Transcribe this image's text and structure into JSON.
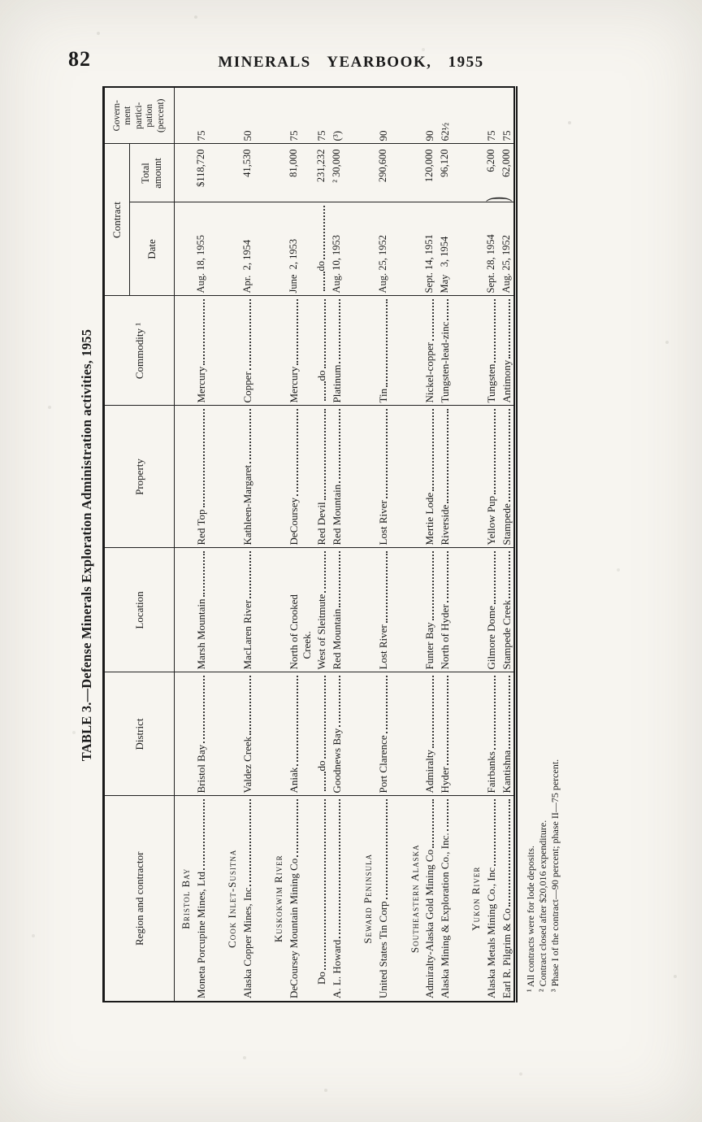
{
  "page": {
    "number": "82",
    "running_head": "MINERALS YEARBOOK, 1955"
  },
  "table": {
    "title": "TABLE 3.—Defense Minerals Exploration Administration activities, 1955",
    "headers": {
      "region": "Region and contractor",
      "district": "District",
      "location": "Location",
      "property": "Property",
      "commodity": "Commodity ¹",
      "contract": "Contract",
      "date": "Date",
      "amount": "Total\namount",
      "participation": "Govern-\nment\npartici-\npation\n(percent)"
    },
    "misc": {
      "date_pair_brace": ")"
    },
    "rows": [
      {
        "type": "heading",
        "label": "Bristol Bay"
      },
      {
        "type": "data",
        "contractor": "Moneta Porcupine Mines, Ltd",
        "district": "Bristol Bay",
        "location": [
          "Marsh Mountain"
        ],
        "property": "Red Top",
        "commodity": "Mercury",
        "date": "Aug. 18, 1955",
        "amount": "$118,720",
        "participation": "75",
        "gap_after": true
      },
      {
        "type": "heading",
        "label": "Cook Inlet-Susitna"
      },
      {
        "type": "data",
        "contractor": "Alaska Copper Mines, Inc",
        "district": "Valdez Creek",
        "location": [
          "MacLaren River"
        ],
        "property": "Kathleen-Margaret",
        "commodity": "Copper",
        "date": "Apr.  2, 1954",
        "amount": "41,530",
        "participation": "50",
        "gap_after": true
      },
      {
        "type": "heading",
        "label": "Kuskokwim River"
      },
      {
        "type": "data",
        "contractor": "DeCoursey Mountain Mining Co",
        "district": "Aniak",
        "location": [
          "North of Crooked",
          "Creek."
        ],
        "property": "DeCoursey",
        "commodity": "Mercury",
        "date": "June  2, 1953",
        "amount": "81,000",
        "participation": "75"
      },
      {
        "type": "data",
        "contractor": "Do",
        "district": "do",
        "location": [
          "West of Sleitmute"
        ],
        "property": "Red Devil",
        "commodity": "do",
        "date": "do",
        "amount": "231,232",
        "participation": "75"
      },
      {
        "type": "data",
        "contractor": "A. L. Howard",
        "district": "Goodnews Bay",
        "location": [
          "Red Mountain"
        ],
        "property": "Red Mountain",
        "commodity": "Platinum",
        "date": "Aug. 10, 1953",
        "amount": "² 30,000",
        "participation": "(³)",
        "gap_after": true
      },
      {
        "type": "heading",
        "label": "Seward Peninsula"
      },
      {
        "type": "data",
        "contractor": "United States Tin Corp",
        "district": "Port Clarence",
        "location": [
          "Lost River"
        ],
        "property": "Lost River",
        "commodity": "Tin",
        "date": "Aug. 25, 1952",
        "amount": "290,600",
        "participation": "90",
        "gap_after": true
      },
      {
        "type": "heading",
        "label": "Southeastern Alaska"
      },
      {
        "type": "data",
        "contractor": "Admiralty-Alaska Gold Mining Co",
        "district": "Admiralty",
        "location": [
          "Funter Bay"
        ],
        "property": "Mertie Lode",
        "commodity": "Nickel-copper",
        "date": "Sept. 14, 1951",
        "amount": "120,000",
        "participation": "90"
      },
      {
        "type": "data",
        "contractor": "Alaska Mining & Exploration Co., Inc.",
        "district": "Hyder",
        "location": [
          "North of Hyder"
        ],
        "property": "Riverside",
        "commodity": "Tungsten-lead-zinc",
        "date": "May   3, 1954",
        "amount": "96,120",
        "participation": "62½",
        "gap_after": true
      },
      {
        "type": "heading",
        "label": "Yukon River"
      },
      {
        "type": "data",
        "contractor": "Alaska Metals Mining Co., Inc",
        "district": "Fairbanks",
        "location": [
          "Gilmore Dome"
        ],
        "property": "Yellow Pup",
        "commodity": "Tungsten",
        "date": "Sept. 28, 1954",
        "amount": "6,200",
        "participation": "75",
        "brace": true
      },
      {
        "type": "data",
        "contractor": "Earl R. Pilgrim & Co",
        "district": "Kantishna",
        "location": [
          "Stampede Creek"
        ],
        "property": "Stampede",
        "commodity": "Antimony",
        "date": "Aug. 25, 1952",
        "amount": "62,000",
        "participation": "75"
      }
    ],
    "footnotes": [
      "¹ All contracts were for lode deposits.",
      "² Contract closed after $20,016 expenditure.",
      "³ Phase I of the contract—90 percent; phase II—75 percent."
    ]
  }
}
